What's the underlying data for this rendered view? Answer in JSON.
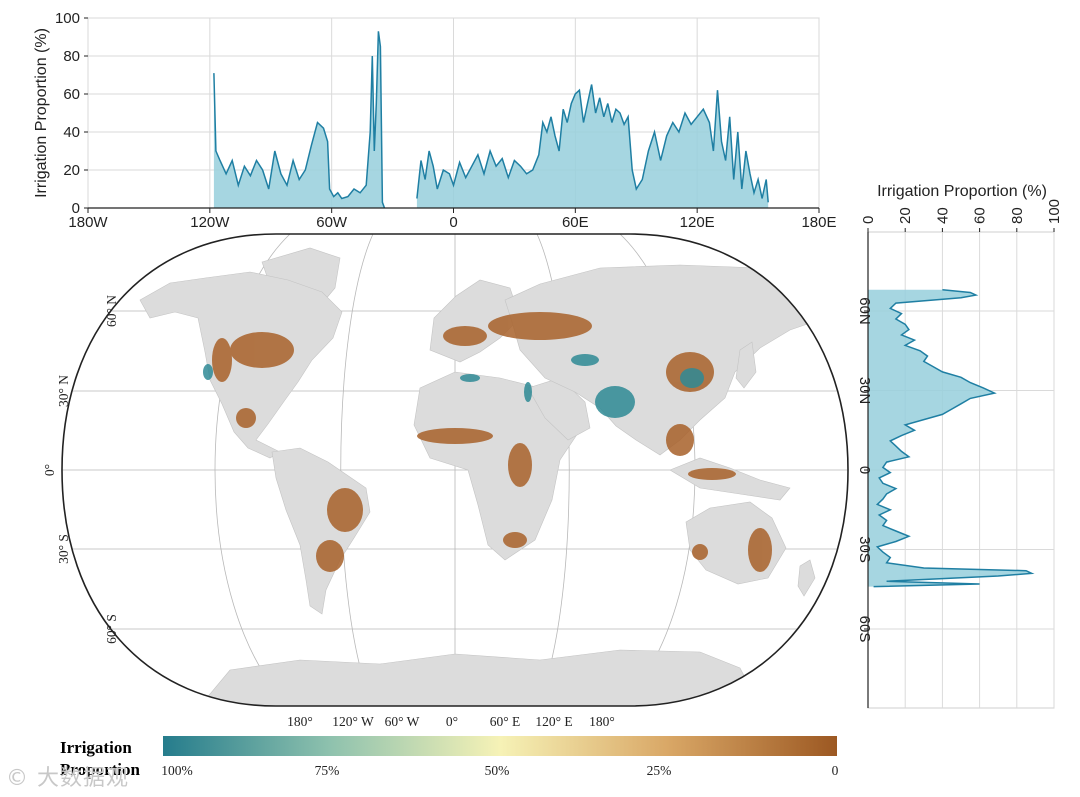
{
  "top_chart": {
    "ylabel": "Irrigation Proportion (%)",
    "yticks": [
      "0",
      "20",
      "40",
      "60",
      "80",
      "100"
    ],
    "xticks": [
      "180W",
      "120W",
      "60W",
      "0",
      "60E",
      "120E",
      "180E"
    ]
  },
  "right_chart": {
    "xlabel": "Irrigation Proportion (%)",
    "xticks": [
      "0",
      "20",
      "40",
      "60",
      "80",
      "100"
    ],
    "yticks": [
      "60N",
      "30N",
      "0",
      "30S",
      "60S"
    ]
  },
  "map": {
    "lat_labels": [
      "60° N",
      "30° N",
      "0°",
      "30° S",
      "60° S"
    ],
    "lon_labels": [
      "180°",
      "120° W",
      "60° W",
      "0°",
      "60° E",
      "120° E",
      "180°"
    ]
  },
  "colorbar": {
    "title": "Irrigation Proportion",
    "ticks": [
      "100%",
      "75%",
      "50%",
      "25%",
      "0"
    ],
    "colors": [
      "#257c8c",
      "#8fc2ae",
      "#f6f2b6",
      "#d9a766",
      "#9c5822"
    ]
  },
  "watermark": "© 大数据观",
  "chart_data": [
    {
      "type": "area",
      "title": "",
      "xlabel": "",
      "ylabel": "Irrigation Proportion (%)",
      "xlim": [
        -180,
        180
      ],
      "ylim": [
        0,
        100
      ],
      "grid": true,
      "series": [
        {
          "x": [
            -118,
            -117,
            -115,
            -112,
            -109,
            -106,
            -103,
            -100,
            -97,
            -94,
            -91,
            -88,
            -85,
            -82,
            -79,
            -76,
            -73,
            -70,
            -67,
            -64,
            -62,
            -61,
            -59,
            -57,
            -55,
            -52,
            -49,
            -46,
            -43,
            -41,
            -40,
            -39,
            -38,
            -37,
            -36,
            -35,
            -34
          ],
          "y": [
            71,
            30,
            25,
            18,
            25,
            12,
            22,
            17,
            25,
            20,
            10,
            30,
            18,
            12,
            25,
            15,
            20,
            33,
            45,
            42,
            35,
            10,
            6,
            8,
            5,
            6,
            10,
            8,
            12,
            40,
            80,
            30,
            55,
            93,
            85,
            3,
            0
          ]
        },
        {
          "x": [
            -18,
            -16,
            -14,
            -12,
            -10,
            -8,
            -5,
            -2,
            0,
            3,
            6,
            9,
            12,
            15,
            18,
            21,
            24,
            27,
            30,
            33,
            36,
            39,
            42,
            44,
            46,
            48,
            50,
            52,
            54,
            56,
            58,
            60,
            62,
            64,
            66,
            68,
            70,
            72,
            74,
            76,
            78,
            80,
            82,
            84,
            86,
            88,
            90,
            93,
            96,
            99,
            102,
            105,
            108,
            111,
            114,
            117,
            120,
            123,
            126,
            128,
            130,
            132,
            134,
            136,
            138,
            140,
            142,
            144,
            146,
            148,
            150,
            152,
            154,
            155
          ],
          "y": [
            5,
            25,
            15,
            30,
            22,
            10,
            20,
            18,
            12,
            24,
            16,
            22,
            28,
            18,
            30,
            22,
            26,
            16,
            25,
            22,
            18,
            20,
            28,
            45,
            40,
            48,
            38,
            30,
            52,
            45,
            55,
            60,
            62,
            45,
            55,
            65,
            50,
            58,
            48,
            55,
            45,
            52,
            50,
            44,
            48,
            20,
            10,
            15,
            30,
            40,
            25,
            38,
            45,
            40,
            50,
            44,
            48,
            52,
            45,
            30,
            62,
            35,
            25,
            48,
            15,
            40,
            10,
            30,
            18,
            8,
            15,
            5,
            15,
            3
          ]
        }
      ]
    },
    {
      "type": "area",
      "title": "",
      "xlabel": "Irrigation Proportion (%)",
      "ylabel": "",
      "xlim": [
        0,
        100
      ],
      "ylim": [
        -90,
        90
      ],
      "grid": true,
      "series": [
        {
          "lat": [
            68,
            67,
            66,
            65,
            63,
            61,
            59,
            57,
            55,
            53,
            51,
            49,
            47,
            45,
            43,
            41,
            39,
            37,
            35,
            33,
            31,
            29,
            27,
            25,
            23,
            21,
            19,
            17,
            15,
            13,
            11,
            9,
            7,
            5,
            3,
            1,
            -1,
            -3,
            -5,
            -7,
            -9,
            -11,
            -13,
            -15,
            -17,
            -19,
            -21,
            -23,
            -25,
            -27,
            -29,
            -31,
            -33,
            -35,
            -37,
            -38,
            -39,
            -40,
            -41,
            -42,
            -43,
            -44
          ],
          "val": [
            40,
            55,
            58,
            50,
            15,
            12,
            18,
            15,
            20,
            22,
            18,
            25,
            20,
            28,
            32,
            30,
            35,
            40,
            50,
            55,
            62,
            68,
            55,
            50,
            45,
            40,
            30,
            20,
            25,
            18,
            12,
            15,
            18,
            22,
            10,
            8,
            12,
            6,
            8,
            15,
            10,
            8,
            5,
            12,
            6,
            10,
            8,
            15,
            22,
            15,
            5,
            8,
            12,
            10,
            30,
            85,
            88,
            70,
            40,
            10,
            60,
            3
          ]
        }
      ]
    }
  ]
}
